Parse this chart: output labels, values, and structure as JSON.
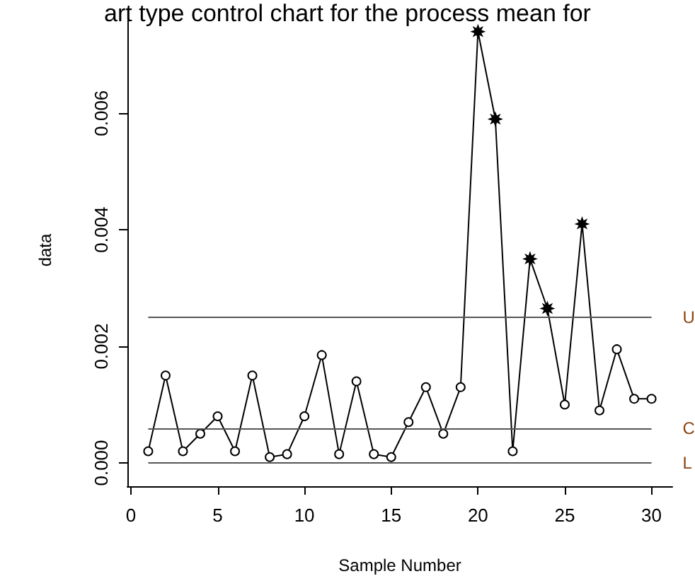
{
  "chart_data": {
    "type": "line",
    "title": "art type control chart for the process mean for",
    "xlabel": "Sample Number",
    "ylabel": "data",
    "x": [
      1,
      2,
      3,
      4,
      5,
      6,
      7,
      8,
      9,
      10,
      11,
      12,
      13,
      14,
      15,
      16,
      17,
      18,
      19,
      20,
      21,
      22,
      23,
      24,
      25,
      26,
      27,
      28,
      29,
      30
    ],
    "series": [
      {
        "color": "#000000",
        "marker": "none",
        "values": [
          0.0002,
          0.0015,
          0.0002,
          0.0005,
          0.0008,
          0.0002,
          0.0015,
          0.0001,
          0.00015,
          0.0008,
          0.00185,
          0.00015,
          0.0014,
          0.00015,
          0.0001,
          0.0007,
          0.0013,
          0.0005,
          0.0013,
          0.0074,
          0.0059,
          0.0002,
          0.0035,
          0.00265,
          0.001,
          0.0041,
          0.0009,
          0.00195,
          0.0011,
          0.0011
        ]
      },
      {
        "type": "scatter",
        "color": "#000000",
        "marker": "circle",
        "values": [
          0.0002,
          0.0015,
          0.0002,
          0.0005,
          0.0008,
          0.0002,
          0.0015,
          0.0001,
          0.00015,
          0.0008,
          0.00185,
          0.00015,
          0.0014,
          0.00015,
          0.0001,
          0.0007,
          0.0013,
          0.0005,
          0.0013,
          null,
          null,
          0.0002,
          null,
          null,
          0.001,
          null,
          0.0009,
          0.00195,
          0.0011,
          0.0011
        ]
      },
      {
        "type": "scatter",
        "color": "#000000",
        "marker": "star",
        "values": [
          null,
          null,
          null,
          null,
          null,
          null,
          null,
          null,
          null,
          null,
          null,
          null,
          null,
          null,
          null,
          null,
          null,
          null,
          null,
          0.0074,
          0.0059,
          null,
          0.0035,
          0.00265,
          null,
          0.0041,
          null,
          null,
          null,
          null
        ]
      }
    ],
    "xlim": [
      -0.2,
      31.2
    ],
    "xticks": [
      0,
      5,
      10,
      15,
      20,
      25,
      30
    ],
    "ylim": [
      -0.0004,
      0.0077
    ],
    "yticks": [
      {
        "value": 0,
        "label": "0.000"
      },
      {
        "value": 0.002,
        "label": "0.002"
      },
      {
        "value": 0.004,
        "label": "0.004"
      },
      {
        "value": 0.006,
        "label": "0.006"
      }
    ],
    "ref_lines": [
      {
        "axis": "y",
        "value": 0.0025,
        "label": "U",
        "color": "#555555"
      },
      {
        "axis": "y",
        "value": 0.0006,
        "label": "C",
        "color": "#555555"
      },
      {
        "axis": "y",
        "value": 0,
        "label": "L",
        "color": "#555555"
      }
    ],
    "grid": false
  }
}
